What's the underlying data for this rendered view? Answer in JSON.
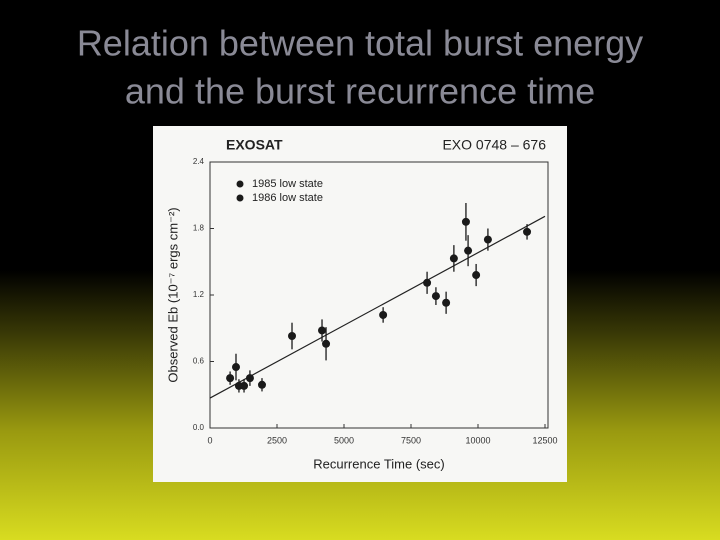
{
  "slide": {
    "title": [
      "Relation between total burst energy",
      "and the burst recurrence time"
    ]
  },
  "chart_data": {
    "type": "scatter",
    "annotations": [
      "EXOSAT",
      "EXO 0748 – 676"
    ],
    "xlabel": "Recurrence Time (sec)",
    "ylabel": "Observed Eb (10⁻⁷ ergs cm⁻²)",
    "xlim": [
      0,
      12500
    ],
    "xticks": [
      0,
      2500,
      5000,
      7500,
      10000,
      12500
    ],
    "ylim": [
      0,
      2.4
    ],
    "yticks": [
      {
        "value": 0,
        "label": "0.0"
      },
      0.6,
      1.2,
      1.8,
      2.4
    ],
    "series": [
      {
        "name": "1985 low state",
        "color": "#1a1a1a",
        "x": [
          750,
          970,
          1080,
          1270,
          1490,
          1940,
          3060,
          4180,
          4330
        ],
        "values": [
          0.45,
          0.55,
          0.38,
          0.38,
          0.45,
          0.39,
          0.83,
          0.88,
          0.76
        ],
        "errors": [
          0.06,
          0.12,
          0.06,
          0.06,
          0.07,
          0.06,
          0.12,
          0.1,
          0.15
        ]
      },
      {
        "name": "1986 low state",
        "color": "#1a1a1a",
        "x": [
          6460,
          8100,
          8430,
          8810,
          9100,
          9550,
          9630,
          9930,
          10370,
          11830
        ],
        "values": [
          1.02,
          1.31,
          1.19,
          1.13,
          1.53,
          1.86,
          1.6,
          1.38,
          1.7,
          1.77
        ],
        "errors": [
          0.07,
          0.1,
          0.08,
          0.1,
          0.12,
          0.17,
          0.14,
          0.1,
          0.1,
          0.07
        ]
      }
    ],
    "fit_line": {
      "x": [
        0,
        12500
      ],
      "y": [
        0.27,
        1.91
      ]
    }
  }
}
